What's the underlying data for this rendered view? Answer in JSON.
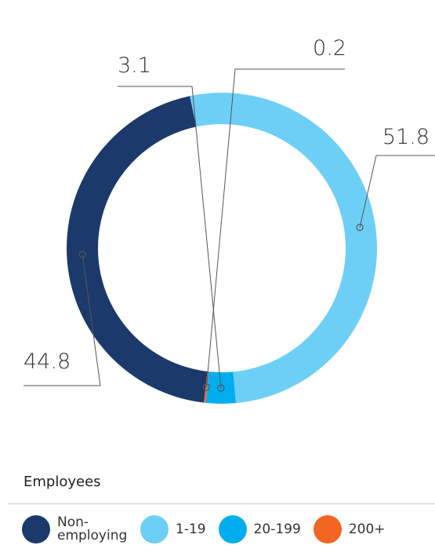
{
  "chart_data": {
    "type": "pie",
    "categories": [
      "Non-employing",
      "1-19",
      "20-199",
      "200+"
    ],
    "values": [
      44.8,
      51.8,
      3.1,
      0.2
    ],
    "colors": [
      "#1b3a6b",
      "#6dcff6",
      "#00aeef",
      "#f26522"
    ],
    "legend_title": "Employees"
  }
}
